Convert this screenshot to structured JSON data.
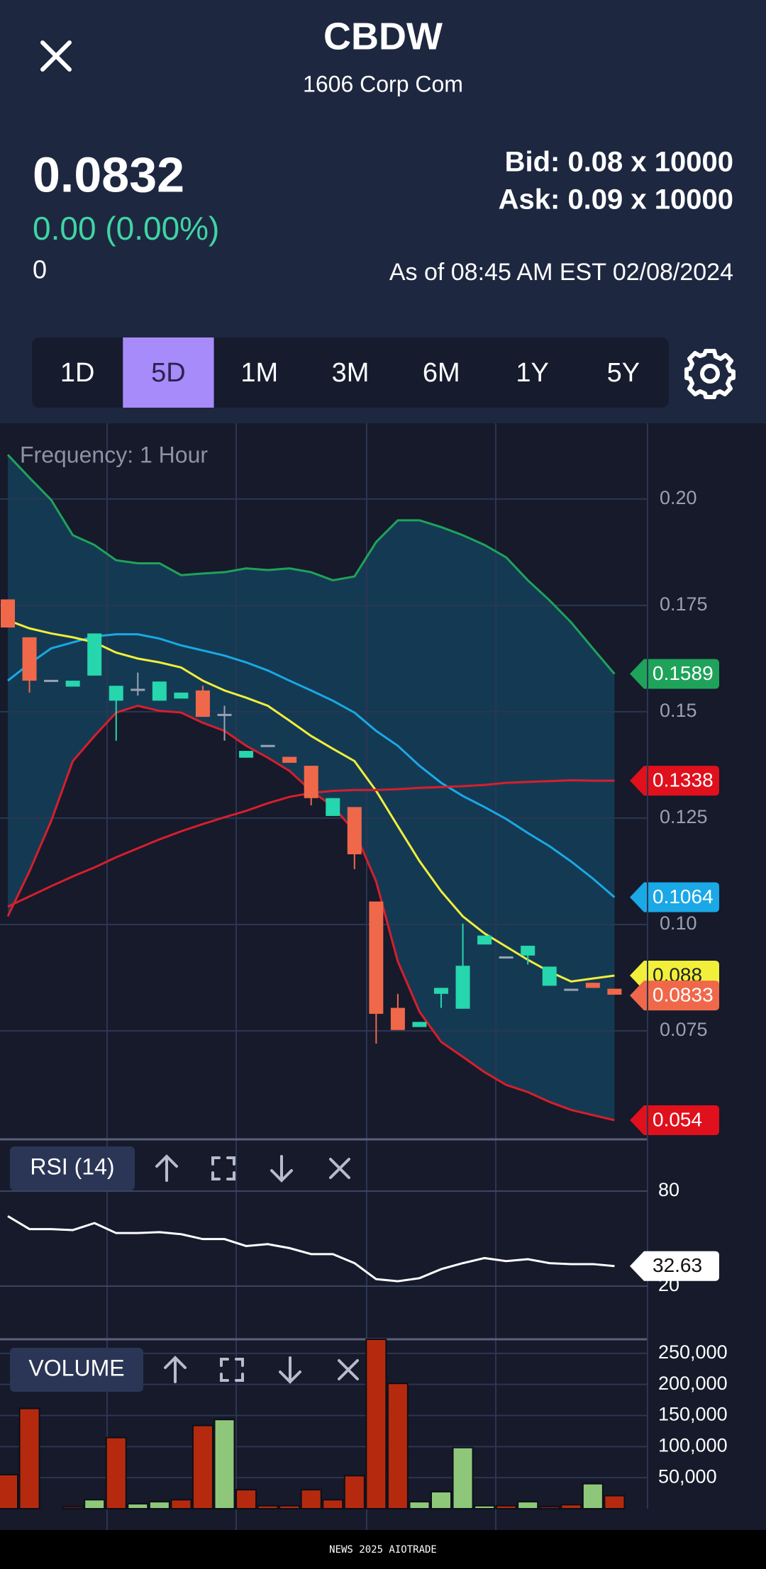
{
  "header": {
    "title": "CBDW",
    "subtitle": "1606 Corp Com"
  },
  "quote": {
    "price": "0.0832",
    "change": "0.00 (0.00%)",
    "volume": "0",
    "bid": "Bid: 0.08 x 10000",
    "ask": "Ask: 0.09 x 10000",
    "as_of": "As of 08:45 AM EST 02/08/2024"
  },
  "ranges": {
    "options": [
      "1D",
      "5D",
      "1M",
      "3M",
      "6M",
      "1Y",
      "5Y"
    ],
    "selected": 1,
    "selected_color": "#a78bfa"
  },
  "chart_data": {
    "type": "candlestick",
    "subtitle": "Frequency: 1 Hour",
    "open": [
      0.1764,
      0.1675,
      0.1575,
      0.1559,
      0.1585,
      0.1526,
      0.1554,
      0.1526,
      0.1531,
      0.155,
      0.1495,
      0.1392,
      0.1422,
      0.1394,
      0.1373,
      0.1255,
      0.1276,
      0.1054,
      0.0804,
      0.0759,
      0.0837,
      0.0802,
      0.0953,
      0.0925,
      0.0927,
      0.0856,
      0.0849,
      0.0863,
      0.0849
    ],
    "high": [
      0.1764,
      0.1675,
      0.1575,
      0.1573,
      0.1684,
      0.1561,
      0.1592,
      0.1571,
      0.1545,
      0.1561,
      0.1514,
      0.1408,
      0.1422,
      0.1394,
      0.1373,
      0.1297,
      0.1276,
      0.1054,
      0.0837,
      0.0771,
      0.0851,
      0.1002,
      0.0974,
      0.0925,
      0.095,
      0.0901,
      0.0849,
      0.0863,
      0.0849
    ],
    "low": [
      0.1698,
      0.1545,
      0.1575,
      0.1559,
      0.1585,
      0.1432,
      0.1538,
      0.1526,
      0.1531,
      0.1488,
      0.1432,
      0.1392,
      0.1422,
      0.138,
      0.128,
      0.1255,
      0.113,
      0.072,
      0.0752,
      0.0759,
      0.0804,
      0.0802,
      0.0953,
      0.0925,
      0.0906,
      0.0856,
      0.0849,
      0.0851,
      0.0835
    ],
    "close": [
      0.1698,
      0.1573,
      0.1575,
      0.1573,
      0.1684,
      0.1561,
      0.1554,
      0.1571,
      0.1545,
      0.1488,
      0.1495,
      0.1408,
      0.1422,
      0.138,
      0.1297,
      0.1297,
      0.1165,
      0.079,
      0.0752,
      0.0771,
      0.0851,
      0.0903,
      0.0974,
      0.0925,
      0.095,
      0.0901,
      0.0849,
      0.0851,
      0.0835
    ],
    "up_color": "#26d6ad",
    "down_color": "#f0684a",
    "flat_color": "#9aa3b5",
    "band_color": "#143a53",
    "series": [
      {
        "color": "#1fa35a",
        "values": [
          0.2104,
          0.205,
          0.1998,
          0.1915,
          0.1892,
          0.1856,
          0.1849,
          0.1849,
          0.1821,
          0.1825,
          0.1828,
          0.1837,
          0.1833,
          0.1837,
          0.1828,
          0.1809,
          0.1818,
          0.1899,
          0.195,
          0.195,
          0.1934,
          0.1915,
          0.1892,
          0.1863,
          0.1809,
          0.1762,
          0.171,
          0.1649,
          0.1589
        ]
      },
      {
        "color": "#d81e2c",
        "values": [
          0.1019,
          0.1125,
          0.1243,
          0.1384,
          0.1443,
          0.1498,
          0.1514,
          0.1502,
          0.1498,
          0.1474,
          0.1455,
          0.142,
          0.1392,
          0.1361,
          0.1314,
          0.1278,
          0.1219,
          0.1101,
          0.0913,
          0.0795,
          0.0724,
          0.0689,
          0.0653,
          0.0623,
          0.0606,
          0.0583,
          0.0564,
          0.0552,
          0.054
        ]
      },
      {
        "color": "#1aa8e6",
        "values": [
          0.1573,
          0.1613,
          0.1649,
          0.1663,
          0.1677,
          0.1682,
          0.1682,
          0.1672,
          0.1656,
          0.1644,
          0.1632,
          0.1616,
          0.1597,
          0.1573,
          0.155,
          0.1526,
          0.1498,
          0.1455,
          0.142,
          0.1373,
          0.1333,
          0.1302,
          0.1276,
          0.1248,
          0.1215,
          0.1184,
          0.1148,
          0.1108,
          0.1064
        ]
      },
      {
        "color": "#f2ef3a",
        "values": [
          0.1715,
          0.1696,
          0.1684,
          0.1675,
          0.1663,
          0.1639,
          0.1625,
          0.1616,
          0.1604,
          0.1573,
          0.155,
          0.1533,
          0.1514,
          0.1479,
          0.1443,
          0.1413,
          0.1384,
          0.1314,
          0.1231,
          0.1149,
          0.1078,
          0.1019,
          0.0979,
          0.0948,
          0.0917,
          0.0889,
          0.0866,
          0.0873,
          0.088
        ]
      },
      {
        "color": "#d81e2c",
        "values": [
          0.1042,
          0.1066,
          0.109,
          0.1113,
          0.1134,
          0.1158,
          0.1179,
          0.12,
          0.1219,
          0.1236,
          0.1252,
          0.1267,
          0.1285,
          0.13,
          0.1309,
          0.1314,
          0.1316,
          0.1316,
          0.1318,
          0.1321,
          0.1323,
          0.1325,
          0.1328,
          0.1333,
          0.1335,
          0.1337,
          0.1339,
          0.1338,
          0.1338
        ]
      }
    ],
    "ylim": [
      0.0495,
      0.2178
    ],
    "yticks": [
      {
        "value": 0.2,
        "label": "0.20"
      },
      0.175,
      0.15,
      0.125,
      {
        "value": 0.1,
        "label": "0.10"
      },
      0.075
    ],
    "grid": true,
    "price_tags": [
      {
        "value": 0.1589,
        "color": "#1fa35a",
        "text_color": "#ffffff"
      },
      {
        "value": 0.1338,
        "color": "#e0101c",
        "text_color": "#ffffff"
      },
      {
        "value": 0.1064,
        "color": "#1aa8e6",
        "text_color": "#ffffff"
      },
      {
        "value": 0.088,
        "color": "#f2ef3a",
        "text_color": "#222222"
      },
      {
        "value": 0.0833,
        "color": "#f0684a",
        "text_color": "#ffffff"
      },
      {
        "value": 0.054,
        "color": "#e0101c",
        "text_color": "#ffffff"
      }
    ],
    "rsi": {
      "title": "RSI (14)",
      "color": "#ffffff",
      "values": [
        64.2,
        56.0,
        56.0,
        55.4,
        59.8,
        53.5,
        53.5,
        54.1,
        52.8,
        49.7,
        49.7,
        45.3,
        46.5,
        44.0,
        40.2,
        40.2,
        34.5,
        24.4,
        23.1,
        25.0,
        30.7,
        34.5,
        37.7,
        35.8,
        37.0,
        34.5,
        33.9,
        33.9,
        32.63
      ],
      "ylim": [
        -13.6,
        112.7
      ],
      "yticks": [
        80,
        20
      ],
      "tag": 32.63
    },
    "volume": {
      "title": "VOLUME",
      "values": [
        54800,
        161300,
        null,
        3000,
        14500,
        114500,
        8000,
        11300,
        14500,
        133900,
        143500,
        30600,
        4800,
        4800,
        30600,
        14500,
        53200,
        272600,
        201600,
        11300,
        27400,
        98400,
        4800,
        4800,
        11300,
        3200,
        6500,
        40300,
        21000
      ],
      "colors": [
        "#b52a0e",
        "#b52a0e",
        null,
        "#b52a0e",
        "#8fc77a",
        "#b52a0e",
        "#8fc77a",
        "#8fc77a",
        "#b52a0e",
        "#b52a0e",
        "#8fc77a",
        "#b52a0e",
        "#b52a0e",
        "#b52a0e",
        "#b52a0e",
        "#b52a0e",
        "#b52a0e",
        "#b52a0e",
        "#b52a0e",
        "#8fc77a",
        "#8fc77a",
        "#8fc77a",
        "#8fc77a",
        "#b52a0e",
        "#8fc77a",
        "#b52a0e",
        "#b52a0e",
        "#8fc77a",
        "#b52a0e"
      ],
      "ylim": [
        0,
        272600
      ],
      "yticks": [
        {
          "value": 250000,
          "label": "250,000"
        },
        {
          "value": 200000,
          "label": "200,000"
        },
        {
          "value": 150000,
          "label": "150,000"
        },
        {
          "value": 100000,
          "label": "100,000"
        },
        {
          "value": 50000,
          "label": "50,000"
        }
      ]
    }
  },
  "footer": "NEWS 2025 AIOTRADE"
}
